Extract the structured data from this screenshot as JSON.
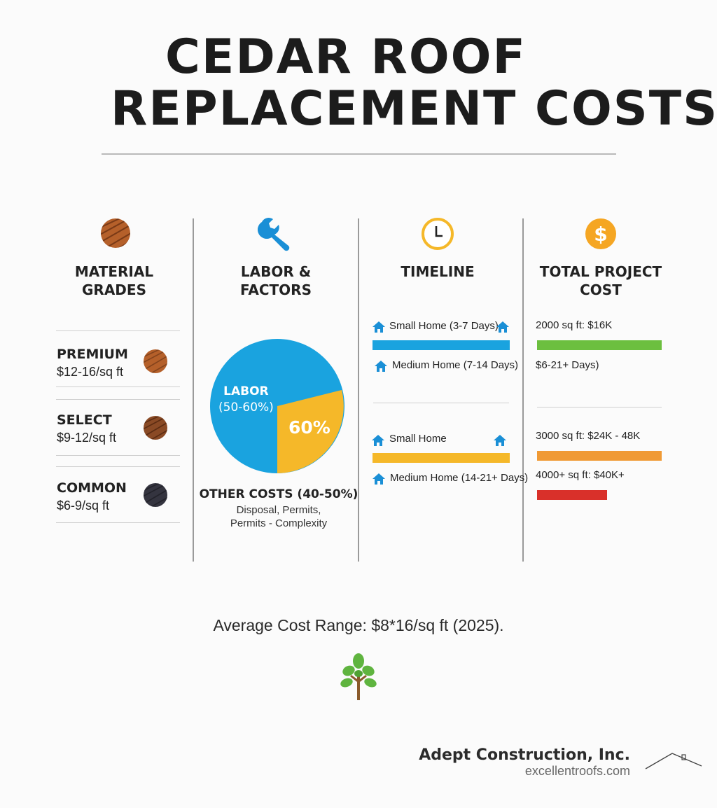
{
  "title": {
    "line1": "CEDAR ROOF",
    "line2": "REPLACEMENT COSTS"
  },
  "columns": {
    "materials": {
      "icon": "wood-grain-icon",
      "heading_line1": "MATERIAL",
      "heading_line2": "GRADES",
      "grades": [
        {
          "name": "PREMIUM",
          "price": "$12-16/sq ft",
          "color": "#b5602a"
        },
        {
          "name": "SELECT",
          "price": "$9-12/sq ft",
          "color": "#8a4a25"
        },
        {
          "name": "COMMON",
          "price": "$6-9/sq ft",
          "color": "#34343f"
        }
      ]
    },
    "labor": {
      "icon": "wrench-icon",
      "heading_line1": "LABOR &",
      "heading_line2": "FACTORS",
      "pie": {
        "labor_label_line1": "LABOR",
        "labor_label_line2": "(50-60%)",
        "center_label": "60%",
        "labor_color": "#1aa3df",
        "other_color": "#f5b829"
      },
      "other_title": "OTHER COSTS (40-50%)",
      "other_line1": "Disposal, Permits,",
      "other_line2": "Permits - Complexity"
    },
    "timeline": {
      "icon": "clock-icon",
      "heading": "TIMELINE",
      "group1": {
        "top_label": "Small Home (3-7 Days)",
        "bottom_label": "Medium Home (7-14 Days)",
        "bar_color": "#1aa3df"
      },
      "group2": {
        "top_label": "Small Home",
        "bottom_label": "Medium Home (14-21+ Days)",
        "bar_color": "#f5b829"
      }
    },
    "total": {
      "icon": "dollar-coin-icon",
      "heading_line1": "TOTAL PROJECT",
      "heading_line2": "COST",
      "rows": [
        {
          "label": "2000 sq ft: $16K",
          "bar_color": "#6cbf3f",
          "sub": "$6-21+ Days)"
        },
        {
          "label": "3000 sq ft: $24K - 48K",
          "bar_color": "#f09a35"
        },
        {
          "label": "4000+ sq ft: $40K+",
          "bar_color": "#d9302a"
        }
      ]
    }
  },
  "average": "Average Cost Range: $8*16/sq ft (2025).",
  "footer": {
    "company": "Adept Construction, Inc.",
    "website": "excellentroofs.com"
  }
}
